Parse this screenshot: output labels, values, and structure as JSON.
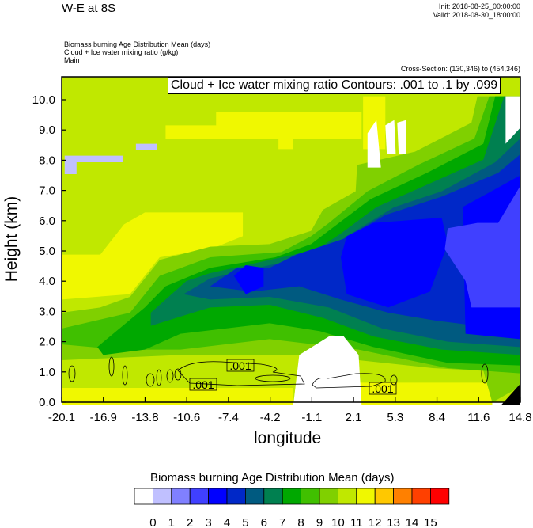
{
  "header": {
    "title": "W-E at 8S",
    "init": "Init: 2018-08-25_00:00:00",
    "valid": "Valid: 2018-08-30_18:00:00",
    "field1": "Biomass burning Age Distribution Mean   (days)",
    "field2": "Cloud + Ice water mixing ratio   (g/kg)",
    "field3": "Main",
    "cross_section": "Cross-Section: (130,346) to (454,346)"
  },
  "chart_data": {
    "type": "heatmap",
    "title": "W-E at 8S",
    "xlabel": "longitude",
    "ylabel": "Height (km)",
    "xticks": [
      "-20.1",
      "-16.9",
      "-13.8",
      "-10.6",
      "-7.4",
      "-4.2",
      "-1.1",
      "2.1",
      "5.3",
      "8.4",
      "11.6",
      "14.8"
    ],
    "yticks": [
      "0.0",
      "1.0",
      "2.0",
      "3.0",
      "4.0",
      "5.0",
      "6.0",
      "7.0",
      "8.0",
      "9.0",
      "10.0"
    ],
    "xlim": [
      -20.1,
      14.8
    ],
    "ylim": [
      0,
      10.8
    ],
    "contour_title": "Cloud + Ice water mixing ratio Contours: .001 to .1 by .099",
    "contour_labels": [
      ".001",
      ".001",
      ".001"
    ],
    "colorbar": {
      "title": "Biomass burning Age Distribution Mean  (days)",
      "labels": [
        "0",
        "1",
        "2",
        "3",
        "4",
        "5",
        "6",
        "7",
        "8",
        "9",
        "10",
        "11",
        "12",
        "13",
        "14",
        "15"
      ],
      "colors": [
        "#ffffff",
        "#c0c0ff",
        "#8080ff",
        "#4040ff",
        "#0000ff",
        "#0028c8",
        "#005a80",
        "#008050",
        "#00a800",
        "#40c000",
        "#80d000",
        "#c0e800",
        "#f0f800",
        "#ffc800",
        "#ff8000",
        "#ff4000",
        "#ff0000"
      ]
    }
  }
}
